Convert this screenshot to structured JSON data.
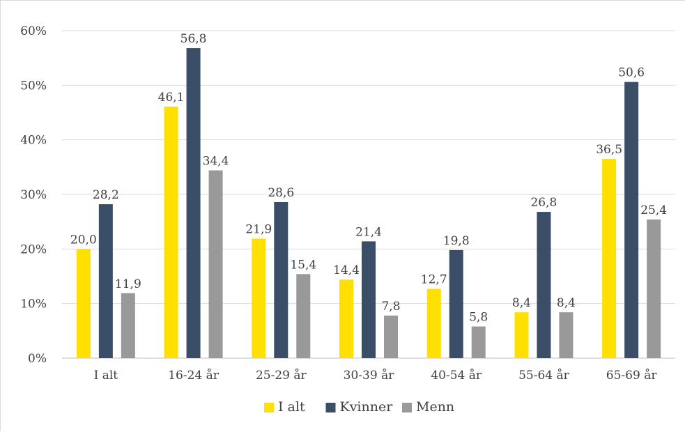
{
  "chart_data": {
    "type": "bar",
    "categories": [
      "I alt",
      "16-24 år",
      "25-29 år",
      "30-39 år",
      "40-54 år",
      "55-64 år",
      "65-69 år"
    ],
    "series": [
      {
        "name": "I alt",
        "color": "#ffe000",
        "values": [
          20.0,
          46.1,
          21.9,
          14.4,
          12.7,
          8.4,
          36.5
        ],
        "labels": [
          "20,0",
          "46,1",
          "21,9",
          "14,4",
          "12,7",
          "8,4",
          "36,5"
        ]
      },
      {
        "name": "Kvinner",
        "color": "#3a4e68",
        "values": [
          28.2,
          56.8,
          28.6,
          21.4,
          19.8,
          26.8,
          50.6
        ],
        "labels": [
          "28,2",
          "56,8",
          "28,6",
          "21,4",
          "19,8",
          "26,8",
          "50,6"
        ]
      },
      {
        "name": "Menn",
        "color": "#999999",
        "values": [
          11.9,
          34.4,
          15.4,
          7.8,
          5.8,
          8.4,
          25.4
        ],
        "labels": [
          "11,9",
          "34,4",
          "15,4",
          "7,8",
          "5,8",
          "8,4",
          "25,4"
        ]
      }
    ],
    "y_ticks": [
      "0%",
      "10%",
      "20%",
      "30%",
      "40%",
      "50%",
      "60%"
    ],
    "ylim": [
      0,
      60
    ],
    "grid": true,
    "legend_position": "bottom"
  }
}
